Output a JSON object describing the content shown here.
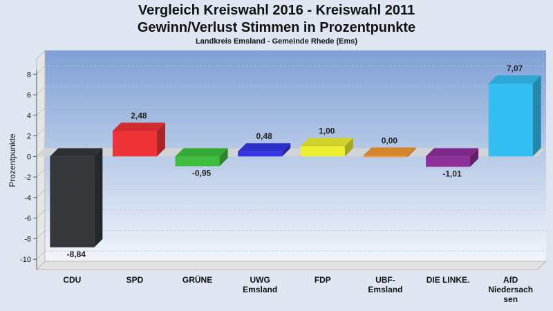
{
  "chart_data": {
    "type": "bar",
    "title": "Vergleich Kreiswahl 2016 - Kreiswahl 2011",
    "subtitle": "Gewinn/Verlust Stimmen in Prozentpunkte",
    "subsubtitle": "Landkreis Emsland - Gemeinde Rhede (Ems)",
    "ylabel": "Prozentpunkte",
    "xlabel": "",
    "ylim": [
      -11,
      9.5
    ],
    "yticks": [
      -10,
      -8,
      -6,
      -4,
      -2,
      0,
      2,
      4,
      6,
      8
    ],
    "grid": true,
    "categories": [
      "CDU",
      "SPD",
      "GRÜNE",
      "UWG\nEmsland",
      "FDP",
      "UBF-\nEmsland",
      "DIE LINKE.",
      "AfD\nNiedersach\nsen"
    ],
    "values": [
      -8.84,
      2.48,
      -0.95,
      0.48,
      1.0,
      0.0,
      -1.01,
      7.07
    ],
    "value_labels": [
      "-8,84",
      "2,48",
      "-0,95",
      "0,48",
      "1,00",
      "0,00",
      "-1,01",
      "7,07"
    ],
    "colors": [
      "#35373b",
      "#ee3338",
      "#3dbf3d",
      "#3535e6",
      "#eeee33",
      "#f09733",
      "#8e2f9a",
      "#33bff2"
    ]
  }
}
